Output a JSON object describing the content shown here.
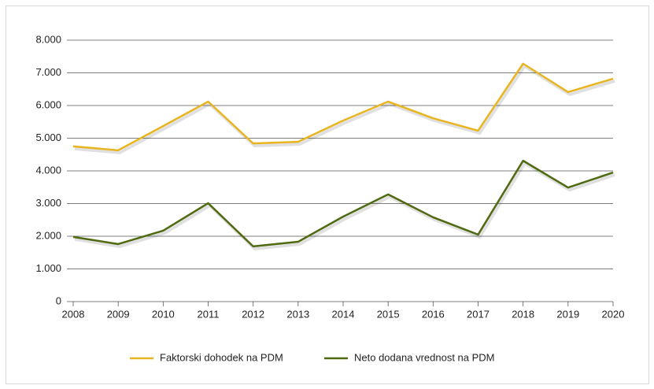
{
  "chart_data": {
    "type": "line",
    "x": [
      "2008",
      "2009",
      "2010",
      "2011",
      "2012",
      "2013",
      "2014",
      "2015",
      "2016",
      "2017",
      "2018",
      "2019",
      "2020"
    ],
    "series": [
      {
        "name": "Faktorski dohodek na PDM",
        "color": "#e8b520",
        "values": [
          4750,
          4630,
          5370,
          6120,
          4840,
          4890,
          5540,
          6120,
          5610,
          5230,
          7280,
          6410,
          6820
        ]
      },
      {
        "name": "Neto dodana vrednost na PDM",
        "color": "#4f6a10",
        "values": [
          1980,
          1760,
          2170,
          3010,
          1690,
          1830,
          2600,
          3280,
          2580,
          2050,
          4310,
          3490,
          3950
        ]
      }
    ],
    "ylim": [
      0,
      8000
    ],
    "yticks": [
      0,
      {
        "value": 1000,
        "label": "1.000"
      },
      {
        "value": 2000,
        "label": "2.000"
      },
      {
        "value": 3000,
        "label": "3.000"
      },
      {
        "value": 4000,
        "label": "4.000"
      },
      {
        "value": 5000,
        "label": "5.000"
      },
      {
        "value": 6000,
        "label": "6.000"
      },
      {
        "value": 7000,
        "label": "7.000"
      },
      {
        "value": 8000,
        "label": "8.000"
      }
    ],
    "grid": true,
    "legend": "bottom"
  }
}
